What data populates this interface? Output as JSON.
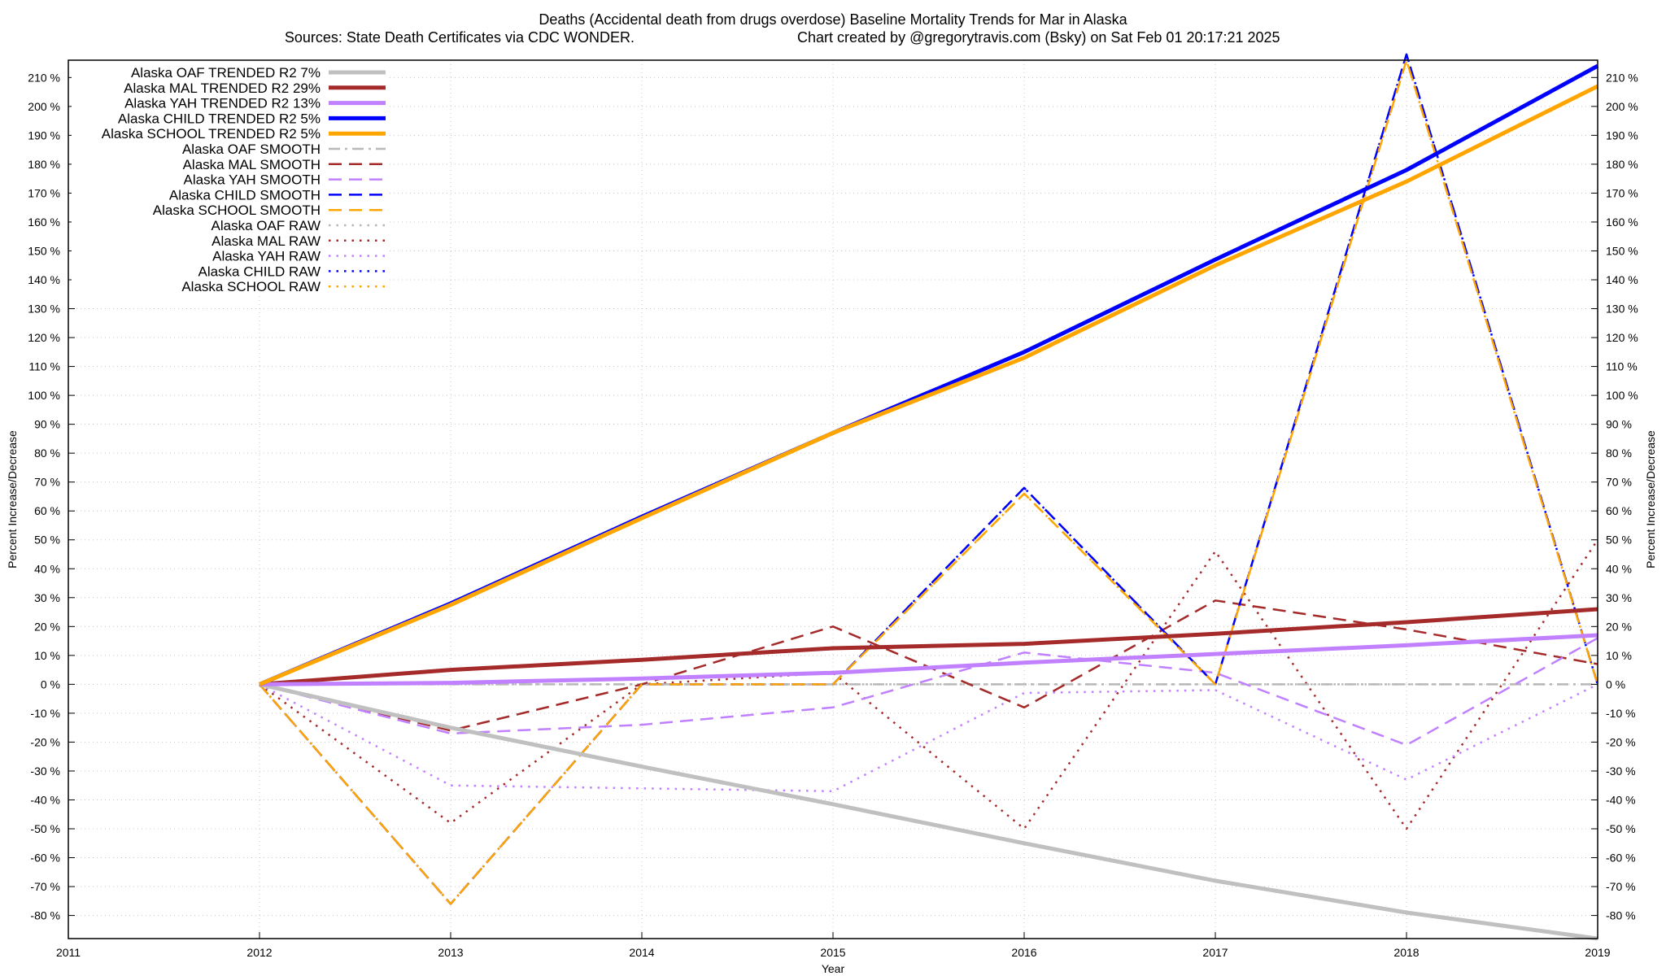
{
  "chart_data": {
    "type": "line",
    "title": "Deaths (Accidental death from drugs overdose)  Baseline Mortality Trends for Mar in Alaska",
    "subtitle_left": "Sources: State Death Certificates via CDC WONDER.",
    "subtitle_right": "Chart created by @gregorytravis.com (Bsky) on Sat Feb 01 20:17:21 2025",
    "xlabel": "Year",
    "ylabel": "Percent Increase/Decrease",
    "ylabel_right": "Percent Increase/Decrease",
    "xlim": [
      2011,
      2019
    ],
    "ylim": [
      -88,
      216
    ],
    "x_ticks": [
      "2011",
      "2012",
      "2013",
      "2014",
      "2015",
      "2016",
      "2017",
      "2018",
      "2019"
    ],
    "y_ticks": [
      {
        "value": 210,
        "label": "210 %"
      },
      {
        "value": 200,
        "label": "200 %"
      },
      {
        "value": 190,
        "label": "190 %"
      },
      {
        "value": 180,
        "label": "180 %"
      },
      {
        "value": 170,
        "label": "170 %"
      },
      {
        "value": 160,
        "label": "160 %"
      },
      {
        "value": 150,
        "label": "150 %"
      },
      {
        "value": 140,
        "label": "140 %"
      },
      {
        "value": 130,
        "label": "130 %"
      },
      {
        "value": 120,
        "label": "120 %"
      },
      {
        "value": 110,
        "label": "110 %"
      },
      {
        "value": 100,
        "label": "100 %"
      },
      {
        "value": 90,
        "label": "90 %"
      },
      {
        "value": 80,
        "label": "80 %"
      },
      {
        "value": 70,
        "label": "70 %"
      },
      {
        "value": 60,
        "label": "60 %"
      },
      {
        "value": 50,
        "label": "50 %"
      },
      {
        "value": 40,
        "label": "40 %"
      },
      {
        "value": 30,
        "label": "30 %"
      },
      {
        "value": 20,
        "label": "20 %"
      },
      {
        "value": 10,
        "label": "10 %"
      },
      {
        "value": 0,
        "label": "0 %"
      },
      {
        "value": -10,
        "label": "-10 %"
      },
      {
        "value": -20,
        "label": "-20 %"
      },
      {
        "value": -30,
        "label": "-30 %"
      },
      {
        "value": -40,
        "label": "-40 %"
      },
      {
        "value": -50,
        "label": "-50 %"
      },
      {
        "value": -60,
        "label": "-60 %"
      },
      {
        "value": -70,
        "label": "-70 %"
      },
      {
        "value": -80,
        "label": "-80 %"
      }
    ],
    "grid": true,
    "legend_position": "top-left",
    "x": [
      2012,
      2013,
      2014,
      2015,
      2016,
      2017,
      2018,
      2019
    ],
    "series": [
      {
        "name": "Alaska OAF TRENDED R2  7%",
        "style": "solid",
        "color": "#c0c0c0",
        "width": 5,
        "values": [
          0,
          -15,
          -28.5,
          -41.5,
          -55,
          -68,
          -79,
          -88
        ]
      },
      {
        "name": "Alaska MAL TRENDED R2  29%",
        "style": "solid",
        "color": "#a52a2a",
        "width": 5,
        "values": [
          0,
          5,
          8.5,
          12.5,
          14,
          17.5,
          21.5,
          26
        ]
      },
      {
        "name": "Alaska YAH TRENDED R2  13%",
        "style": "solid",
        "color": "#c080ff",
        "width": 5,
        "values": [
          0,
          0.5,
          2,
          4,
          7.5,
          10.5,
          13.5,
          17
        ]
      },
      {
        "name": "Alaska CHILD TRENDED R2  5%",
        "style": "solid",
        "color": "#0000ff",
        "width": 5,
        "values": [
          0,
          28,
          58,
          87,
          115,
          147,
          178,
          214
        ]
      },
      {
        "name": "Alaska SCHOOL TRENDED R2  5%",
        "style": "solid",
        "color": "#ffa500",
        "width": 5,
        "values": [
          0,
          27.5,
          57.5,
          87,
          113,
          145,
          174,
          207
        ]
      },
      {
        "name": "Alaska OAF SMOOTH",
        "style": "dashdot",
        "color": "#b8b8b8",
        "width": 2.5,
        "values": [
          0,
          0,
          0,
          0,
          0,
          0,
          0,
          0
        ]
      },
      {
        "name": "Alaska MAL SMOOTH",
        "style": "dashed",
        "color": "#a52a2a",
        "width": 2.5,
        "values": [
          0,
          -16,
          0,
          20,
          -8,
          29,
          19,
          7
        ]
      },
      {
        "name": "Alaska YAH SMOOTH",
        "style": "dashed",
        "color": "#c080ff",
        "width": 2.5,
        "values": [
          0,
          -17,
          -14,
          -8,
          11,
          4,
          -21,
          16
        ]
      },
      {
        "name": "Alaska CHILD SMOOTH",
        "style": "dashed",
        "color": "#0000ff",
        "width": 2.5,
        "values": [
          0,
          -76,
          0,
          0,
          68,
          0,
          218,
          0
        ]
      },
      {
        "name": "Alaska SCHOOL SMOOTH",
        "style": "dashed",
        "color": "#ffa500",
        "width": 2.5,
        "values": [
          0,
          -76,
          0,
          0,
          66,
          0,
          216,
          0
        ]
      },
      {
        "name": "Alaska OAF RAW",
        "style": "dotted",
        "color": "#b8b8b8",
        "width": 2.5,
        "values": [
          0,
          0,
          0,
          0,
          0,
          0,
          0,
          0
        ]
      },
      {
        "name": "Alaska MAL RAW",
        "style": "dotted",
        "color": "#a52a2a",
        "width": 2.5,
        "values": [
          0,
          -48,
          0,
          4,
          -50,
          46,
          -50,
          50
        ]
      },
      {
        "name": "Alaska YAH RAW",
        "style": "dotted",
        "color": "#c080ff",
        "width": 2.5,
        "values": [
          0,
          -35,
          -36,
          -37,
          -3,
          -2,
          -33,
          0
        ]
      },
      {
        "name": "Alaska CHILD RAW",
        "style": "dotted",
        "color": "#0000ff",
        "width": 2.5,
        "values": [
          0,
          -76,
          0,
          0,
          68,
          0,
          218,
          0
        ]
      },
      {
        "name": "Alaska SCHOOL RAW",
        "style": "dotted",
        "color": "#ffa500",
        "width": 2.5,
        "values": [
          0,
          -76,
          0,
          0,
          66,
          0,
          216,
          0
        ]
      }
    ]
  }
}
